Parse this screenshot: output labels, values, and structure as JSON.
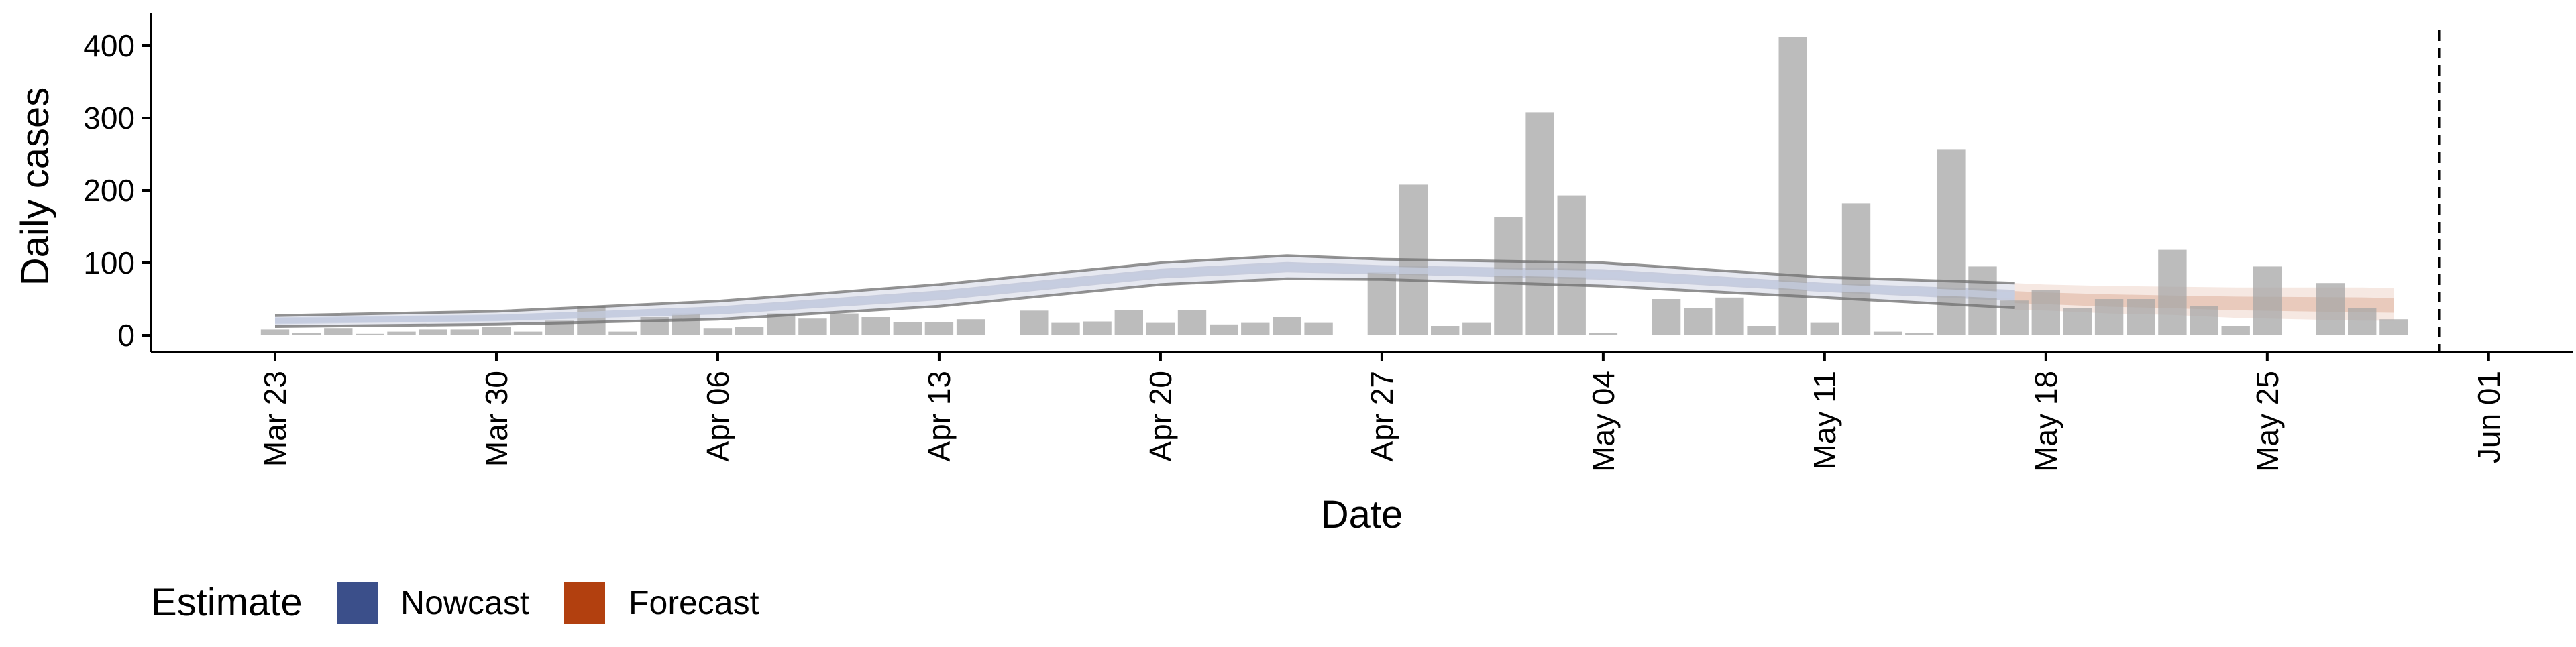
{
  "chart_data": {
    "type": "bar",
    "xlabel": "Date",
    "ylabel": "Daily cases",
    "ylim": [
      -20,
      440
    ],
    "yticks": [
      0,
      100,
      200,
      300,
      400
    ],
    "xticks": [
      "Mar 23",
      "Mar 30",
      "Apr 06",
      "Apr 13",
      "Apr 20",
      "Apr 27",
      "May 04",
      "May 11",
      "May 18",
      "May 25",
      "Jun 01"
    ],
    "grid": false,
    "legend": {
      "title": "Estimate",
      "position": "bottom-left",
      "entries": [
        {
          "label": "Nowcast",
          "color": "#3b4f8a"
        },
        {
          "label": "Forecast",
          "color": "#b2400f"
        }
      ]
    },
    "cases": {
      "dates": [
        "Mar 23",
        "Mar 24",
        "Mar 25",
        "Mar 26",
        "Mar 27",
        "Mar 28",
        "Mar 29",
        "Mar 30",
        "Mar 31",
        "Apr 01",
        "Apr 02",
        "Apr 03",
        "Apr 04",
        "Apr 05",
        "Apr 06",
        "Apr 07",
        "Apr 08",
        "Apr 09",
        "Apr 10",
        "Apr 11",
        "Apr 12",
        "Apr 13",
        "Apr 14",
        "Apr 15",
        "Apr 16",
        "Apr 17",
        "Apr 18",
        "Apr 19",
        "Apr 20",
        "Apr 21",
        "Apr 22",
        "Apr 23",
        "Apr 24",
        "Apr 25",
        "Apr 26",
        "Apr 27",
        "Apr 28",
        "Apr 29",
        "Apr 30",
        "May 01",
        "May 02",
        "May 03",
        "May 04",
        "May 05",
        "May 06",
        "May 07",
        "May 08",
        "May 09",
        "May 10",
        "May 11",
        "May 12",
        "May 13",
        "May 14",
        "May 15",
        "May 16",
        "May 17",
        "May 18",
        "May 19",
        "May 20",
        "May 21",
        "May 22",
        "May 23",
        "May 24",
        "May 25",
        "May 26",
        "May 27",
        "May 28",
        "May 29",
        "May 30"
      ],
      "values": [
        8,
        3,
        10,
        2,
        5,
        8,
        8,
        12,
        5,
        20,
        40,
        5,
        25,
        30,
        10,
        12,
        30,
        23,
        30,
        25,
        18,
        18,
        22,
        0,
        34,
        17,
        19,
        35,
        17,
        35,
        15,
        17,
        25,
        17,
        0,
        88,
        208,
        13,
        17,
        163,
        308,
        193,
        3,
        0,
        50,
        37,
        52,
        13,
        412,
        17,
        182,
        5,
        3,
        257,
        95,
        48,
        63,
        38,
        50,
        50,
        118,
        40,
        13,
        95,
        0,
        72,
        38,
        22,
        0
      ]
    },
    "nowcast": {
      "x": [
        "Mar 23",
        "Mar 30",
        "Apr 06",
        "Apr 13",
        "Apr 20",
        "Apr 24",
        "Apr 27",
        "May 04",
        "May 11",
        "May 17"
      ],
      "lower": [
        12,
        15,
        22,
        40,
        70,
        78,
        77,
        68,
        52,
        38
      ],
      "upper": [
        27,
        33,
        47,
        70,
        100,
        110,
        105,
        100,
        80,
        72
      ],
      "median": [
        20,
        24,
        34,
        55,
        85,
        94,
        90,
        84,
        66,
        55
      ]
    },
    "forecast": {
      "x": [
        "May 17",
        "May 18",
        "May 20",
        "May 22",
        "May 24",
        "May 26",
        "May 28",
        "May 29"
      ],
      "lower": [
        35,
        34,
        30,
        28,
        24,
        22,
        20,
        20
      ],
      "upper": [
        72,
        70,
        68,
        67,
        66,
        66,
        66,
        65
      ],
      "median": [
        52,
        50,
        47,
        45,
        43,
        42,
        41,
        40
      ]
    }
  }
}
